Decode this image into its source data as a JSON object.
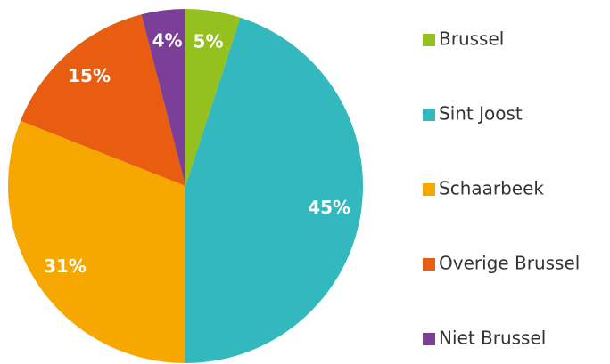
{
  "chart_data": {
    "type": "pie",
    "categories": [
      "Brussel",
      "Sint Joost",
      "Schaarbeek",
      "Overige Brussel",
      "Niet Brussel"
    ],
    "values": [
      5,
      45,
      31,
      15,
      4
    ],
    "value_labels": [
      "5%",
      "45%",
      "31%",
      "15%",
      "4%"
    ],
    "colors": [
      "#95c11f",
      "#33b8bd",
      "#f6a800",
      "#e85d0f",
      "#7b3f98"
    ],
    "legend": "right"
  }
}
